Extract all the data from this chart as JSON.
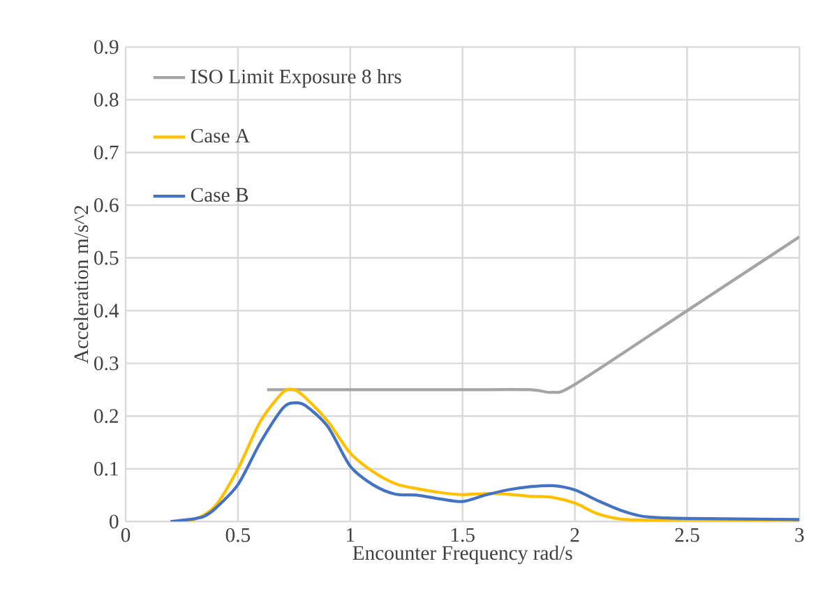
{
  "chart_data": {
    "type": "line",
    "xlabel": "Encounter Frequency rad/s",
    "ylabel": "Acceleration m/s^2",
    "xlim": [
      0,
      3
    ],
    "xticks": [
      0,
      0.5,
      1,
      1.5,
      2,
      2.5,
      3
    ],
    "ylim": [
      0,
      0.9
    ],
    "yticks": [
      0,
      0.1,
      0.2,
      0.3,
      0.4,
      0.5,
      0.6,
      0.7,
      0.8,
      0.9
    ],
    "grid": true,
    "legend": "top left",
    "marker": "none",
    "line_style": "solid",
    "series": [
      {
        "name": "ISO Limit Exposure 8 hrs",
        "color": "#a5a5a5",
        "x": [
          0.63,
          1.0,
          1.5,
          1.8,
          1.9,
          2.0,
          2.5,
          3.0
        ],
        "values": [
          0.25,
          0.25,
          0.25,
          0.25,
          0.245,
          0.26,
          0.4,
          0.54
        ]
      },
      {
        "name": "Case A",
        "color": "#ffc000",
        "x": [
          0.2,
          0.3,
          0.4,
          0.5,
          0.6,
          0.7,
          0.75,
          0.8,
          0.9,
          1.0,
          1.1,
          1.2,
          1.3,
          1.4,
          1.5,
          1.6,
          1.7,
          1.8,
          1.9,
          2.0,
          2.1,
          2.2,
          2.3,
          2.5,
          3.0
        ],
        "values": [
          0,
          0.003,
          0.03,
          0.1,
          0.19,
          0.245,
          0.25,
          0.235,
          0.19,
          0.13,
          0.095,
          0.072,
          0.062,
          0.055,
          0.051,
          0.053,
          0.052,
          0.048,
          0.046,
          0.035,
          0.015,
          0.005,
          0.003,
          0.002,
          0.002
        ]
      },
      {
        "name": "Case B",
        "color": "#4472c4",
        "x": [
          0.2,
          0.3,
          0.35,
          0.4,
          0.5,
          0.6,
          0.7,
          0.75,
          0.8,
          0.9,
          1.0,
          1.1,
          1.2,
          1.3,
          1.4,
          1.5,
          1.6,
          1.7,
          1.8,
          1.9,
          2.0,
          2.1,
          2.2,
          2.3,
          2.4,
          2.5,
          3.0
        ],
        "values": [
          0,
          0.005,
          0.01,
          0.025,
          0.07,
          0.15,
          0.215,
          0.225,
          0.22,
          0.18,
          0.105,
          0.07,
          0.052,
          0.05,
          0.043,
          0.038,
          0.05,
          0.06,
          0.066,
          0.068,
          0.06,
          0.04,
          0.022,
          0.01,
          0.007,
          0.006,
          0.004
        ]
      }
    ]
  }
}
